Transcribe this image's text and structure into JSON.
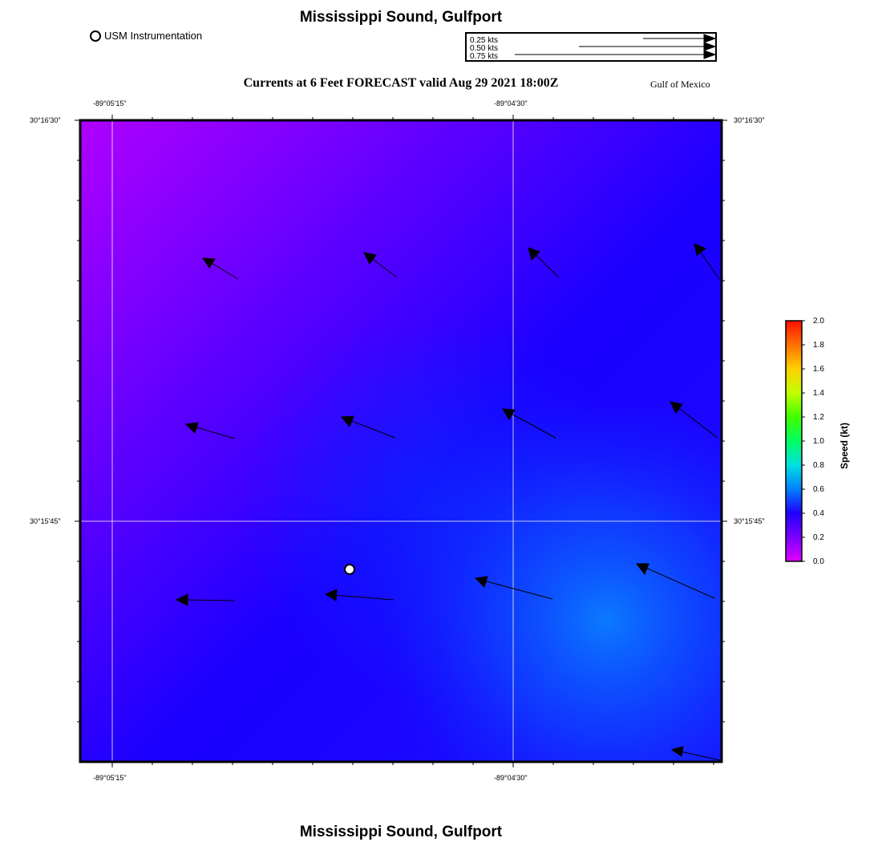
{
  "title": "Mississippi Sound, Gulfport",
  "footer_title": "Mississippi Sound, Gulfport",
  "legend": {
    "usm_label": "USM Instrumentation"
  },
  "scale": {
    "labels": [
      "0.25 kts",
      "0.50 kts",
      "0.75 kts"
    ],
    "values_kt": [
      0.25,
      0.5,
      0.75
    ]
  },
  "subtitle": "Currents at 6 Feet FORECAST valid Aug 29 2021 18:00Z",
  "region_label": "Gulf of Mexico",
  "axes": {
    "lon_ticks": [
      "-89°05'15\"",
      "-89°04'30\""
    ],
    "lat_ticks": [
      "30°16'30\"",
      "30°15'45\""
    ]
  },
  "colorbar": {
    "title": "Speed (kt)",
    "labels": [
      "2.0",
      "1.8",
      "1.6",
      "1.4",
      "1.2",
      "1.0",
      "0.8",
      "0.6",
      "0.4",
      "0.2",
      "0.0"
    ],
    "range": [
      0.0,
      2.0
    ]
  },
  "colors": {
    "field_low": "#b000ff",
    "field_mid": "#1a00ff",
    "field_high": "#0a60ff"
  },
  "station": {
    "name": "USM Instrumentation"
  },
  "current_vectors_note": "arrows show forecast current direction; field shows speed"
}
